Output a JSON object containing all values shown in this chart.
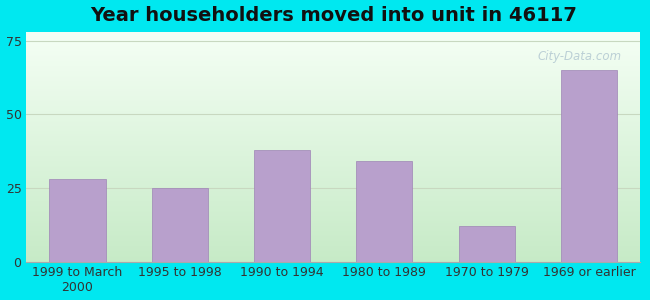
{
  "title": "Year householders moved into unit in 46117",
  "categories": [
    "1999 to March\n2000",
    "1995 to 1998",
    "1990 to 1994",
    "1980 to 1989",
    "1970 to 1979",
    "1969 or earlier"
  ],
  "values": [
    28,
    25,
    38,
    34,
    12,
    65
  ],
  "bar_color": "#b8a0cc",
  "bar_edge_color": "#9e85b5",
  "ylim": [
    0,
    78
  ],
  "yticks": [
    0,
    25,
    50,
    75
  ],
  "background_outer": "#00e8f0",
  "grid_color": "#c8d8c0",
  "title_fontsize": 14,
  "tick_fontsize": 9,
  "title_color": "#111111"
}
